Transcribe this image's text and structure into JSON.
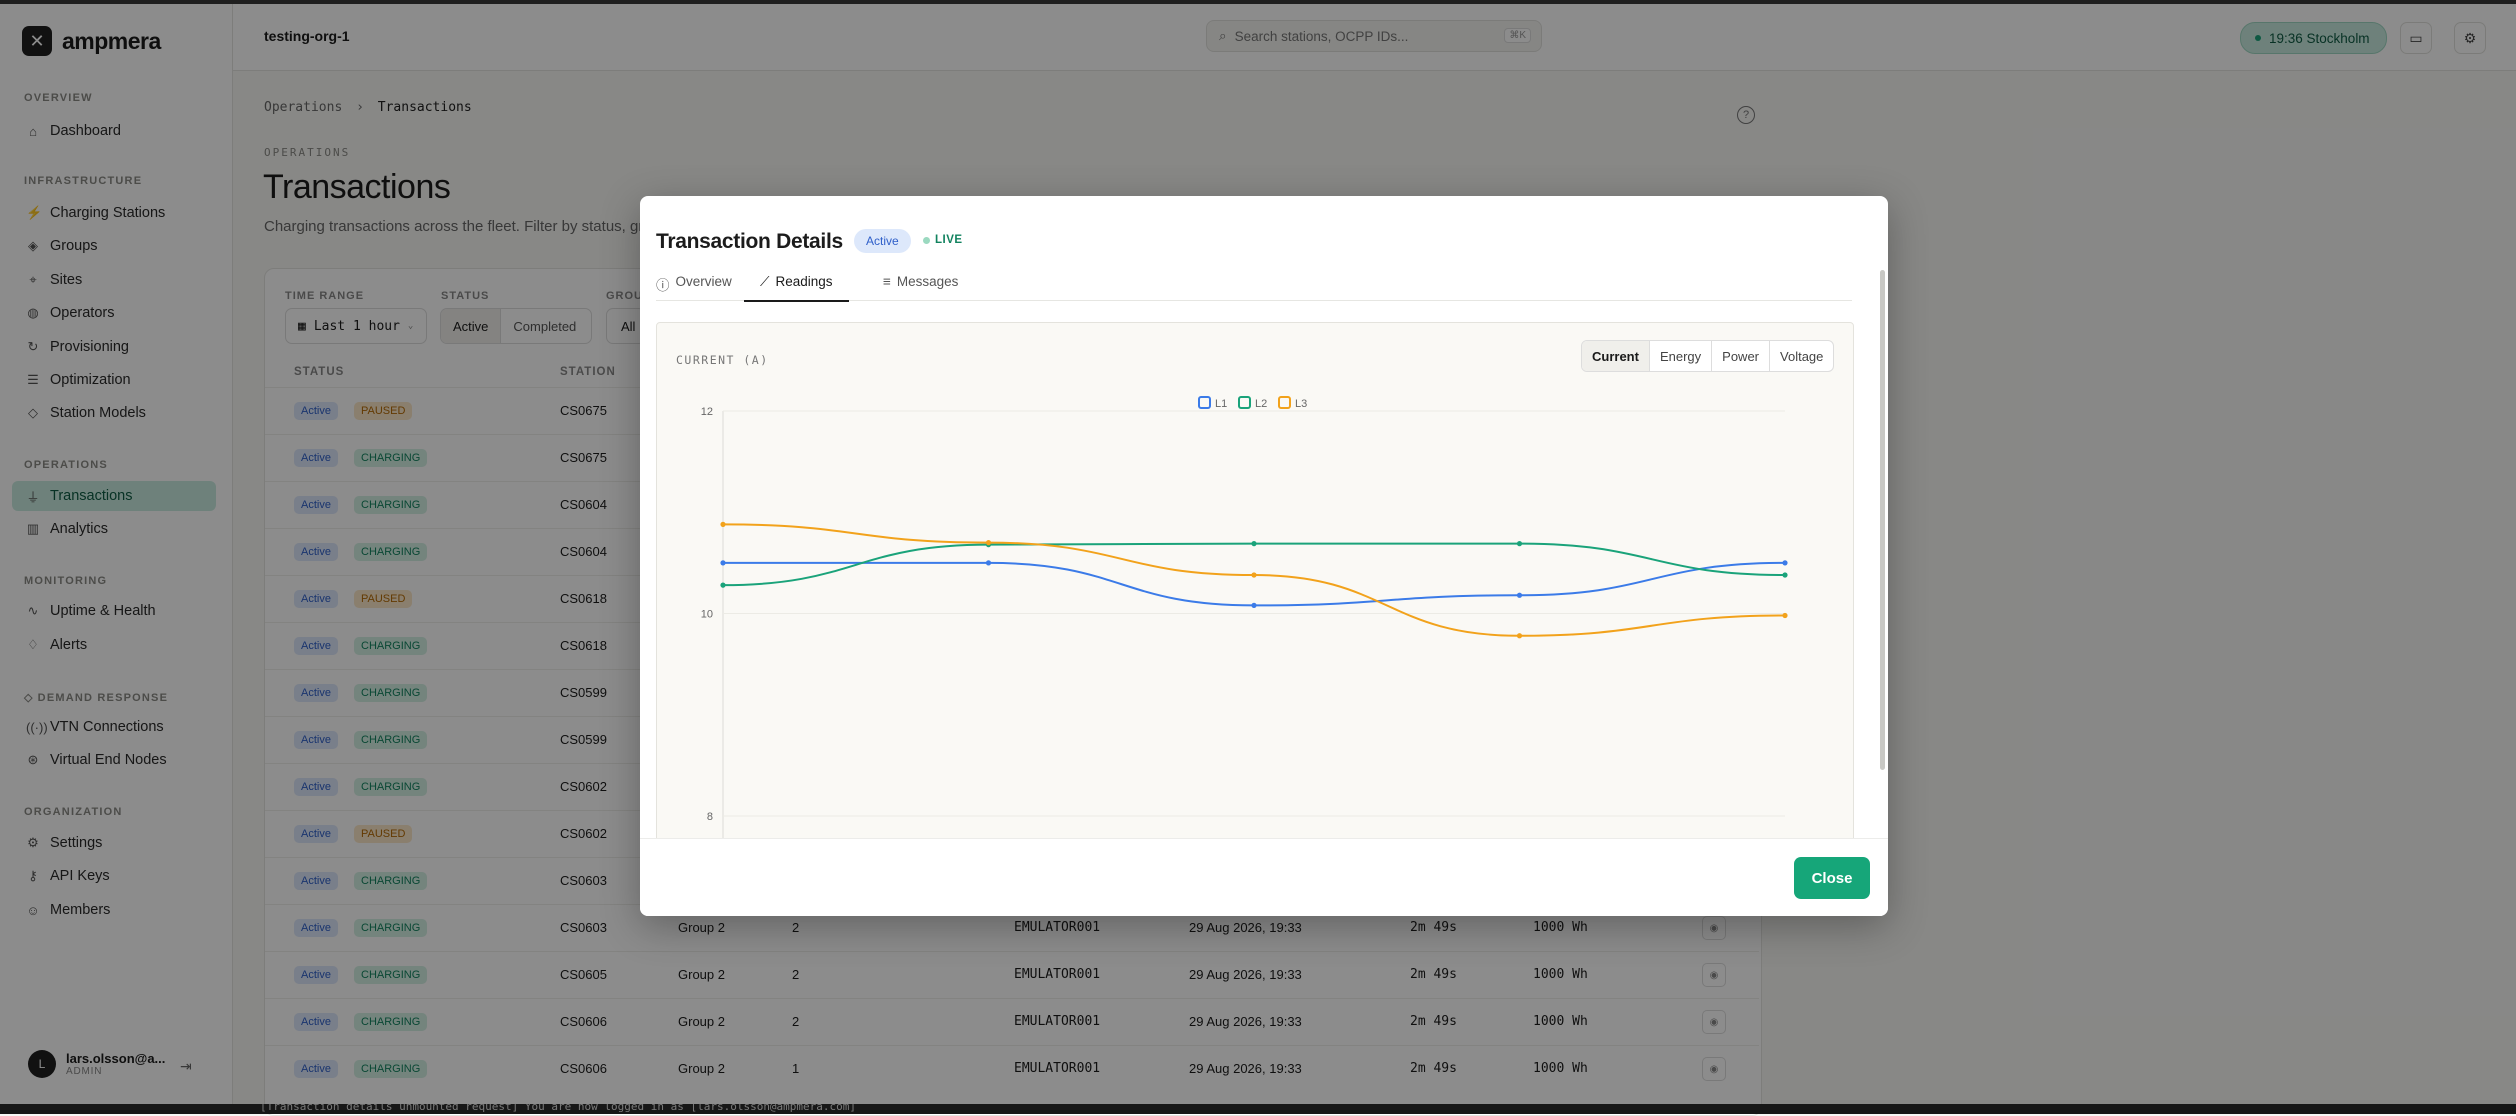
{
  "app": {
    "name": "ampmera",
    "org": "testing-org-1"
  },
  "search": {
    "placeholder": "Search stations, OCPP IDs...",
    "shortcut": "⌘K"
  },
  "clock": {
    "label": "19:36 Stockholm"
  },
  "sidebar": {
    "sections": [
      {
        "title": "OVERVIEW"
      },
      {
        "title": "INFRASTRUCTURE"
      },
      {
        "title": "OPERATIONS"
      },
      {
        "title": "MONITORING"
      },
      {
        "title": "DEMAND RESPONSE"
      },
      {
        "title": "ORGANIZATION"
      }
    ],
    "items": [
      {
        "label": "Dashboard"
      },
      {
        "label": "Charging Stations"
      },
      {
        "label": "Groups"
      },
      {
        "label": "Sites"
      },
      {
        "label": "Operators"
      },
      {
        "label": "Provisioning"
      },
      {
        "label": "Optimization"
      },
      {
        "label": "Station Models"
      },
      {
        "label": "Transactions"
      },
      {
        "label": "Analytics"
      },
      {
        "label": "Uptime & Health"
      },
      {
        "label": "Alerts"
      },
      {
        "label": "VTN Connections"
      },
      {
        "label": "Virtual End Nodes"
      },
      {
        "label": "Settings"
      },
      {
        "label": "API Keys"
      },
      {
        "label": "Members"
      }
    ],
    "user": {
      "initial": "L",
      "name": "lars.olsson@a...",
      "role": "ADMIN"
    }
  },
  "page": {
    "breadcrumb": {
      "parent": "Operations",
      "sep": "›",
      "current": "Transactions"
    },
    "eyebrow": "OPERATIONS",
    "title": "Transactions",
    "subtitle": "Charging transactions across the fleet. Filter by status, group, a"
  },
  "filters": {
    "time_label": "TIME RANGE",
    "time_value": "Last 1 hour",
    "status_label": "STATUS",
    "status_active": "Active",
    "status_completed": "Completed",
    "group_label": "GROU",
    "group_value": "All"
  },
  "table": {
    "headers": {
      "status": "STATUS",
      "station": "STATION"
    },
    "rows": [
      {
        "status": "Active",
        "state": "PAUSED",
        "station": "CS0675",
        "group": "",
        "conn": "",
        "ocpp": "",
        "started": "",
        "duration": "",
        "energy": ""
      },
      {
        "status": "Active",
        "state": "CHARGING",
        "station": "CS0675",
        "group": "",
        "conn": "",
        "ocpp": "",
        "started": "",
        "duration": "",
        "energy": ""
      },
      {
        "status": "Active",
        "state": "CHARGING",
        "station": "CS0604",
        "group": "",
        "conn": "",
        "ocpp": "",
        "started": "",
        "duration": "",
        "energy": ""
      },
      {
        "status": "Active",
        "state": "CHARGING",
        "station": "CS0604",
        "group": "",
        "conn": "",
        "ocpp": "",
        "started": "",
        "duration": "",
        "energy": ""
      },
      {
        "status": "Active",
        "state": "PAUSED",
        "station": "CS0618",
        "group": "",
        "conn": "",
        "ocpp": "",
        "started": "",
        "duration": "",
        "energy": ""
      },
      {
        "status": "Active",
        "state": "CHARGING",
        "station": "CS0618",
        "group": "",
        "conn": "",
        "ocpp": "",
        "started": "",
        "duration": "",
        "energy": ""
      },
      {
        "status": "Active",
        "state": "CHARGING",
        "station": "CS0599",
        "group": "",
        "conn": "",
        "ocpp": "",
        "started": "",
        "duration": "",
        "energy": ""
      },
      {
        "status": "Active",
        "state": "CHARGING",
        "station": "CS0599",
        "group": "",
        "conn": "",
        "ocpp": "",
        "started": "",
        "duration": "",
        "energy": ""
      },
      {
        "status": "Active",
        "state": "CHARGING",
        "station": "CS0602",
        "group": "",
        "conn": "",
        "ocpp": "",
        "started": "",
        "duration": "",
        "energy": ""
      },
      {
        "status": "Active",
        "state": "PAUSED",
        "station": "CS0602",
        "group": "",
        "conn": "",
        "ocpp": "",
        "started": "",
        "duration": "",
        "energy": ""
      },
      {
        "status": "Active",
        "state": "CHARGING",
        "station": "CS0603",
        "group": "",
        "conn": "",
        "ocpp": "",
        "started": "",
        "duration": "",
        "energy": ""
      },
      {
        "status": "Active",
        "state": "CHARGING",
        "station": "CS0603",
        "group": "Group 2",
        "conn": "2",
        "ocpp": "EMULATOR001",
        "started": "29 Aug 2026, 19:33",
        "duration": "2m 49s",
        "energy": "1000 Wh"
      },
      {
        "status": "Active",
        "state": "CHARGING",
        "station": "CS0605",
        "group": "Group 2",
        "conn": "2",
        "ocpp": "EMULATOR001",
        "started": "29 Aug 2026, 19:33",
        "duration": "2m 49s",
        "energy": "1000 Wh"
      },
      {
        "status": "Active",
        "state": "CHARGING",
        "station": "CS0606",
        "group": "Group 2",
        "conn": "2",
        "ocpp": "EMULATOR001",
        "started": "29 Aug 2026, 19:33",
        "duration": "2m 49s",
        "energy": "1000 Wh"
      },
      {
        "status": "Active",
        "state": "CHARGING",
        "station": "CS0606",
        "group": "Group 2",
        "conn": "1",
        "ocpp": "EMULATOR001",
        "started": "29 Aug 2026, 19:33",
        "duration": "2m 49s",
        "energy": "1000 Wh"
      }
    ]
  },
  "terminal": {
    "text": "[Transaction details unmounted request]  You are now logged in as [lars.olsson@ampmera.com]"
  },
  "modal": {
    "title": "Transaction Details",
    "status_badge": "Active",
    "live_label": "LIVE",
    "tabs": [
      "Overview",
      "Readings",
      "Messages"
    ],
    "active_tab": "Readings",
    "chart_label": "CURRENT (A)",
    "metrics": [
      "Current",
      "Energy",
      "Power",
      "Voltage"
    ],
    "active_metric": "Current",
    "close_label": "Close"
  },
  "colors": {
    "accent": "#16a679",
    "l1": "#3b7be8",
    "l2": "#1aa37a",
    "l3": "#f2a21b"
  },
  "chart_data": {
    "type": "line",
    "title": "CURRENT (A)",
    "ylim": [
      7.2,
      12
    ],
    "yticks": [
      12,
      10,
      8
    ],
    "x": [
      0,
      1,
      2,
      3,
      4
    ],
    "series": [
      {
        "name": "L1",
        "color": "#3b7be8",
        "values": [
          10.5,
          10.5,
          10.08,
          10.18,
          10.5
        ]
      },
      {
        "name": "L2",
        "color": "#1aa37a",
        "values": [
          10.28,
          10.68,
          10.69,
          10.69,
          10.38
        ]
      },
      {
        "name": "L3",
        "color": "#f2a21b",
        "values": [
          10.88,
          10.7,
          10.38,
          9.78,
          9.98
        ]
      }
    ],
    "legend": "top-center",
    "grid": true
  }
}
